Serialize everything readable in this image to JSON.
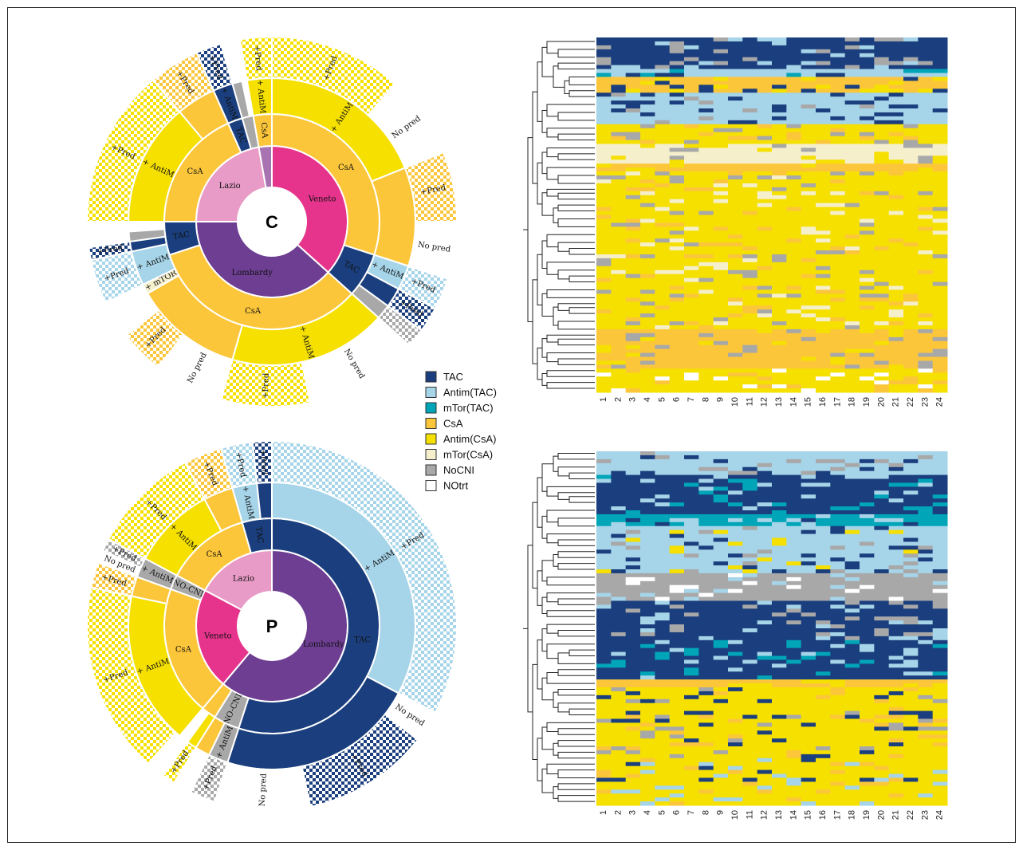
{
  "colors": {
    "TAC": "#1b3f7e",
    "AntimTAC": "#a6d4e8",
    "mTorTAC": "#00a5b8",
    "CsA": "#fcc63b",
    "AntimCsA": "#f5e000",
    "mTorCsA": "#f5efcc",
    "NoCNI": "#a8a8a8",
    "NOtrt": "#ffffff",
    "Veneto": "#e6348c",
    "Lombardy": "#6d3e92",
    "Lazio": "#e89bc6",
    "Other": "#a873b1"
  },
  "legend": [
    {
      "key": "TAC",
      "label": "TAC"
    },
    {
      "key": "AntimTAC",
      "label": "Antim(TAC)"
    },
    {
      "key": "mTorTAC",
      "label": "mTor(TAC)"
    },
    {
      "key": "CsA",
      "label": "CsA"
    },
    {
      "key": "AntimCsA",
      "label": "Antim(CsA)"
    },
    {
      "key": "mTorCsA",
      "label": "mTor(CsA)"
    },
    {
      "key": "NoCNI",
      "label": "NoCNI"
    },
    {
      "key": "NOtrt",
      "label": "NOtrt"
    }
  ],
  "chart_data": [
    {
      "type": "sunburst",
      "center_label": "C",
      "rings": [
        {
          "ring": "region",
          "segments": [
            {
              "label": "Veneto",
              "color": "Veneto",
              "a0": 0,
              "a1": 132
            },
            {
              "label": "Lombardy",
              "color": "Lombardy",
              "a0": 132,
              "a1": 270
            },
            {
              "label": "Lazio",
              "color": "Lazio",
              "a0": 270,
              "a1": 350
            },
            {
              "label": "",
              "color": "Other",
              "a0": 350,
              "a1": 360
            }
          ]
        },
        {
          "ring": "drug",
          "segments": [
            {
              "label": "CsA",
              "color": "CsA",
              "a0": 0,
              "a1": 108
            },
            {
              "label": "TAC",
              "color": "TAC",
              "a0": 108,
              "a1": 132
            },
            {
              "label": "CsA",
              "color": "CsA",
              "a0": 132,
              "a1": 252
            },
            {
              "label": "TAC",
              "color": "TAC",
              "a0": 252,
              "a1": 270
            },
            {
              "label": "CsA",
              "color": "CsA",
              "a0": 270,
              "a1": 336
            },
            {
              "label": "TAC",
              "color": "TAC",
              "a0": 336,
              "a1": 344
            },
            {
              "label": "",
              "color": "NoCNI",
              "a0": 344,
              "a1": 350
            },
            {
              "label": "CsA",
              "color": "CsA",
              "a0": 350,
              "a1": 360
            }
          ]
        },
        {
          "ring": "add-on",
          "segments": [
            {
              "label": "+ AntiM",
              "color": "AntimCsA",
              "a0": 0,
              "a1": 68
            },
            {
              "label": "",
              "color": "CsA",
              "a0": 68,
              "a1": 108
            },
            {
              "label": "+ AntiM",
              "color": "AntimTAC",
              "a0": 108,
              "a1": 118
            },
            {
              "label": "",
              "color": "TAC",
              "a0": 118,
              "a1": 126
            },
            {
              "label": "",
              "color": "NoCNI",
              "a0": 126,
              "a1": 132
            },
            {
              "label": "+ AntiM",
              "color": "AntimCsA",
              "a0": 132,
              "a1": 196
            },
            {
              "label": "",
              "color": "CsA",
              "a0": 196,
              "a1": 240
            },
            {
              "label": "+ mTOR",
              "color": "mTorCsA",
              "a0": 240,
              "a1": 244
            },
            {
              "label": "+ AntiM",
              "color": "AntimTAC",
              "a0": 244,
              "a1": 258
            },
            {
              "label": "",
              "color": "TAC",
              "a0": 258,
              "a1": 262
            },
            {
              "label": "",
              "color": "NoCNI",
              "a0": 262,
              "a1": 266
            },
            {
              "label": "+ AntiM",
              "color": "AntimCsA",
              "a0": 270,
              "a1": 320
            },
            {
              "label": "",
              "color": "CsA",
              "a0": 320,
              "a1": 336
            },
            {
              "label": "+ AntiM",
              "color": "TAC",
              "a0": 336,
              "a1": 344
            },
            {
              "label": "",
              "color": "NoCNI",
              "a0": 344,
              "a1": 348
            },
            {
              "label": "+ AntiM",
              "color": "AntimCsA",
              "a0": 350,
              "a1": 360
            }
          ]
        },
        {
          "ring": "steroid",
          "segments": [
            {
              "label": "+Pred",
              "color": "AntimCsA",
              "a0": 0,
              "a1": 42
            },
            {
              "label": "No pred",
              "color": "NOtrt",
              "a0": 42,
              "a1": 68
            },
            {
              "label": "+Pred",
              "color": "CsA",
              "a0": 68,
              "a1": 90
            },
            {
              "label": "No pred",
              "color": "NOtrt",
              "a0": 90,
              "a1": 108
            },
            {
              "label": "+Pred",
              "color": "AntimTAC",
              "a0": 108,
              "a1": 118
            },
            {
              "label": "+Pred",
              "color": "TAC",
              "a0": 118,
              "a1": 126
            },
            {
              "label": "",
              "color": "NoCNI",
              "a0": 126,
              "a1": 132
            },
            {
              "label": "No pred",
              "color": "NOtrt",
              "a0": 132,
              "a1": 168
            },
            {
              "label": "+Pred",
              "color": "AntimCsA",
              "a0": 168,
              "a1": 196
            },
            {
              "label": "No pred",
              "color": "NOtrt",
              "a0": 196,
              "a1": 218
            },
            {
              "label": "+Pred",
              "color": "CsA",
              "a0": 218,
              "a1": 232
            },
            {
              "label": "+Pred",
              "color": "AntimTAC",
              "a0": 244,
              "a1": 258
            },
            {
              "label": "+Pred",
              "color": "TAC",
              "a0": 258,
              "a1": 262
            },
            {
              "label": "+Pred",
              "color": "AntimCsA",
              "a0": 270,
              "a1": 320
            },
            {
              "label": "+Pred",
              "color": "CsA",
              "a0": 320,
              "a1": 336
            },
            {
              "label": "+Pred",
              "color": "TAC",
              "a0": 336,
              "a1": 344
            },
            {
              "label": "+Pred",
              "color": "AntimCsA",
              "a0": 350,
              "a1": 360
            }
          ]
        }
      ]
    },
    {
      "type": "sunburst",
      "center_label": "P",
      "rings": [
        {
          "ring": "region",
          "segments": [
            {
              "label": "Lombardy",
              "color": "Lombardy",
              "a0": 0,
              "a1": 220
            },
            {
              "label": "Veneto",
              "color": "Veneto",
              "a0": 220,
              "a1": 298
            },
            {
              "label": "Lazio",
              "color": "Lazio",
              "a0": 298,
              "a1": 360
            }
          ]
        },
        {
          "ring": "drug",
          "segments": [
            {
              "label": "TAC",
              "color": "TAC",
              "a0": 0,
              "a1": 198
            },
            {
              "label": "NO-CNI",
              "color": "NoCNI",
              "a0": 198,
              "a1": 212
            },
            {
              "label": "",
              "color": "CsA",
              "a0": 212,
              "a1": 220
            },
            {
              "label": "CsA",
              "color": "CsA",
              "a0": 220,
              "a1": 290
            },
            {
              "label": "NO-CNI",
              "color": "NoCNI",
              "a0": 290,
              "a1": 298
            },
            {
              "label": "CsA",
              "color": "CsA",
              "a0": 298,
              "a1": 344
            },
            {
              "label": "TAC",
              "color": "TAC",
              "a0": 344,
              "a1": 360
            }
          ]
        },
        {
          "ring": "add-on",
          "segments": [
            {
              "label": "+ AntiM",
              "color": "AntimTAC",
              "a0": 0,
              "a1": 118
            },
            {
              "label": "",
              "color": "TAC",
              "a0": 118,
              "a1": 198
            },
            {
              "label": "+ AntiM",
              "color": "NoCNI",
              "a0": 198,
              "a1": 206
            },
            {
              "label": "",
              "color": "CsA",
              "a0": 206,
              "a1": 212
            },
            {
              "label": "",
              "color": "AntimCsA",
              "a0": 212,
              "a1": 216
            },
            {
              "label": "+ AntiM",
              "color": "AntimCsA",
              "a0": 220,
              "a1": 282
            },
            {
              "label": "",
              "color": "CsA",
              "a0": 282,
              "a1": 290
            },
            {
              "label": "+ AntiM",
              "color": "NoCNI",
              "a0": 290,
              "a1": 298
            },
            {
              "label": "+ AntiM",
              "color": "AntimCsA",
              "a0": 298,
              "a1": 332
            },
            {
              "label": "",
              "color": "CsA",
              "a0": 332,
              "a1": 344
            },
            {
              "label": "+ AntiM",
              "color": "AntimTAC",
              "a0": 344,
              "a1": 354
            },
            {
              "label": "",
              "color": "TAC",
              "a0": 354,
              "a1": 360
            }
          ]
        },
        {
          "ring": "steroid",
          "segments": [
            {
              "label": "+Pred",
              "color": "AntimTAC",
              "a0": 0,
              "a1": 118
            },
            {
              "label": "No pred",
              "color": "NOtrt",
              "a0": 118,
              "a1": 128
            },
            {
              "label": "+Pred",
              "color": "TAC",
              "a0": 128,
              "a1": 168
            },
            {
              "label": "No pred",
              "color": "NOtrt",
              "a0": 168,
              "a1": 198
            },
            {
              "label": "+Pred",
              "color": "NoCNI",
              "a0": 198,
              "a1": 206
            },
            {
              "label": "+Pred",
              "color": "AntimCsA",
              "a0": 212,
              "a1": 216
            },
            {
              "label": "+Pred",
              "color": "AntimCsA",
              "a0": 222,
              "a1": 282
            },
            {
              "label": "+Pred",
              "color": "CsA",
              "a0": 282,
              "a1": 290
            },
            {
              "label": "No pred",
              "color": "NOtrt",
              "a0": 290,
              "a1": 294
            },
            {
              "label": "+Pred",
              "color": "NoCNI",
              "a0": 294,
              "a1": 298
            },
            {
              "label": "+Pred",
              "color": "AntimCsA",
              "a0": 298,
              "a1": 332
            },
            {
              "label": "+Pred",
              "color": "CsA",
              "a0": 332,
              "a1": 344
            },
            {
              "label": "+Pred",
              "color": "AntimTAC",
              "a0": 344,
              "a1": 354
            },
            {
              "label": "+Pred",
              "color": "TAC",
              "a0": 354,
              "a1": 360
            }
          ]
        }
      ]
    },
    {
      "type": "heatmap",
      "x_ticks": [
        "1",
        "2",
        "3",
        "4",
        "5",
        "6",
        "7",
        "8",
        "9",
        "10",
        "11",
        "12",
        "13",
        "14",
        "15",
        "16",
        "17",
        "18",
        "19",
        "20",
        "21",
        "22",
        "23",
        "24"
      ],
      "rows": 90,
      "row_blocks": [
        {
          "rows": 8,
          "base": "TAC",
          "noise": [
            "AntimTAC",
            "NoCNI"
          ]
        },
        {
          "rows": 2,
          "base": "AntimTAC",
          "noise": [
            "TAC",
            "mTorTAC"
          ]
        },
        {
          "rows": 4,
          "base": "CsA",
          "noise": [
            "AntimCsA",
            "TAC"
          ]
        },
        {
          "rows": 8,
          "base": "AntimTAC",
          "noise": [
            "TAC",
            "NoCNI"
          ]
        },
        {
          "rows": 5,
          "base": "AntimCsA",
          "noise": [
            "CsA",
            "NoCNI"
          ]
        },
        {
          "rows": 5,
          "base": "mTorCsA",
          "noise": [
            "AntimCsA",
            "NoCNI"
          ]
        },
        {
          "rows": 2,
          "base": "CsA",
          "noise": [
            "AntimCsA"
          ]
        },
        {
          "rows": 40,
          "base": "AntimCsA",
          "noise": [
            "CsA",
            "NoCNI",
            "mTorCsA"
          ]
        },
        {
          "rows": 10,
          "base": "CsA",
          "noise": [
            "AntimCsA",
            "NoCNI"
          ]
        },
        {
          "rows": 6,
          "base": "AntimCsA",
          "noise": [
            "CsA",
            "NOtrt"
          ]
        }
      ]
    },
    {
      "type": "heatmap",
      "x_ticks": [
        "1",
        "2",
        "3",
        "4",
        "5",
        "6",
        "7",
        "8",
        "9",
        "10",
        "11",
        "12",
        "13",
        "14",
        "15",
        "16",
        "17",
        "18",
        "19",
        "20",
        "21",
        "22",
        "23",
        "24"
      ],
      "rows": 90,
      "row_blocks": [
        {
          "rows": 6,
          "base": "AntimTAC",
          "noise": [
            "TAC",
            "NoCNI"
          ]
        },
        {
          "rows": 10,
          "base": "TAC",
          "noise": [
            "AntimTAC",
            "mTorTAC"
          ]
        },
        {
          "rows": 3,
          "base": "mTorTAC",
          "noise": [
            "AntimTAC",
            "TAC"
          ]
        },
        {
          "rows": 12,
          "base": "AntimTAC",
          "noise": [
            "TAC",
            "AntimCsA",
            "NoCNI"
          ]
        },
        {
          "rows": 7,
          "base": "NoCNI",
          "noise": [
            "AntimTAC",
            "NOtrt"
          ]
        },
        {
          "rows": 10,
          "base": "TAC",
          "noise": [
            "AntimTAC",
            "NoCNI"
          ]
        },
        {
          "rows": 10,
          "base": "TAC",
          "noise": [
            "AntimTAC",
            "mTorTAC"
          ]
        },
        {
          "rows": 2,
          "base": "CsA",
          "noise": [
            "AntimCsA"
          ]
        },
        {
          "rows": 18,
          "base": "AntimCsA",
          "noise": [
            "CsA",
            "TAC",
            "NoCNI"
          ]
        },
        {
          "rows": 6,
          "base": "AntimCsA",
          "noise": [
            "CsA",
            "AntimTAC",
            "TAC"
          ]
        },
        {
          "rows": 6,
          "base": "AntimCsA",
          "noise": [
            "CsA",
            "AntimTAC"
          ]
        }
      ]
    }
  ]
}
